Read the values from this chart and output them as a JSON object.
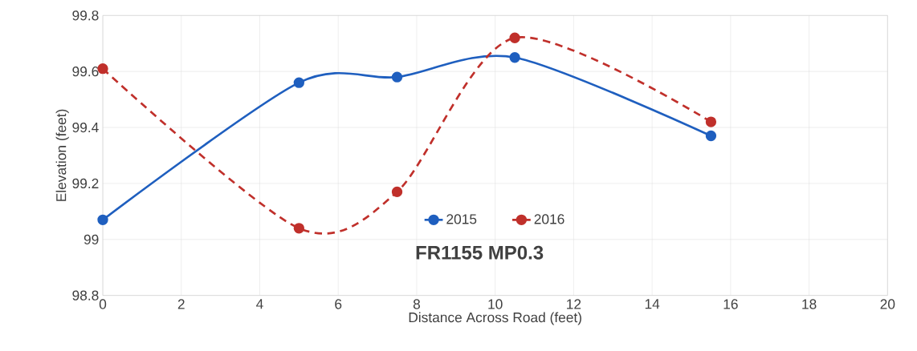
{
  "chart_data": {
    "type": "line",
    "title": "FR1155 MP0.3",
    "xlabel": "Distance Across Road (feet)",
    "ylabel": "Elevation (feet)",
    "x": [
      0,
      5,
      7.5,
      10.5,
      15.5
    ],
    "series": [
      {
        "name": "2015",
        "color": "#1f5fbf",
        "line_style": "solid",
        "values": [
          99.07,
          99.56,
          99.58,
          99.65,
          99.37
        ]
      },
      {
        "name": "2016",
        "color": "#c0302b",
        "line_style": "dashed",
        "values": [
          99.61,
          99.04,
          99.17,
          99.72,
          99.42
        ]
      }
    ],
    "xlim": [
      0,
      20
    ],
    "xticks": [
      0,
      2,
      4,
      6,
      8,
      10,
      12,
      14,
      16,
      18,
      20
    ],
    "ylim": [
      98.8,
      99.8
    ],
    "yticks": [
      {
        "value": 98.8,
        "label": "98.8"
      },
      99,
      {
        "value": 99.2,
        "label": "99.2"
      },
      {
        "value": 99.4,
        "label": "99.4"
      },
      {
        "value": 99.6,
        "label": "99.6"
      },
      {
        "value": 99.8,
        "label": "99.8"
      }
    ],
    "grid": true,
    "legend": "bottom",
    "marker": "circle"
  }
}
